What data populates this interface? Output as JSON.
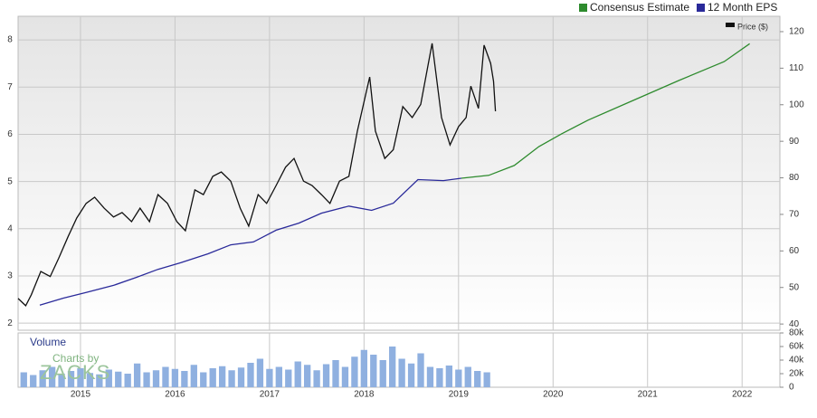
{
  "chart_data": [
    {
      "type": "line",
      "xlim": [
        2014.34,
        2022.4
      ],
      "xticks": [
        2015,
        2016,
        2017,
        2018,
        2019,
        2020,
        2021,
        2022
      ],
      "ylim": [
        1.85,
        8.5
      ],
      "yticks": [
        2,
        3,
        4,
        5,
        6,
        7,
        8
      ],
      "y2lim": [
        38.3,
        124.2
      ],
      "y2ticks": [
        40,
        50,
        60,
        70,
        80,
        90,
        100,
        110,
        120
      ],
      "grid": true,
      "annotations": [
        "Charts by",
        "ZACKS"
      ],
      "series": [
        {
          "name": "Consensus Estimate",
          "color": "#2e8b2e",
          "x": [
            2019.03,
            2019.32,
            2019.59,
            2019.85,
            2020.09,
            2020.37,
            2020.85,
            2021.33,
            2021.81,
            2022.08
          ],
          "values": [
            5.07,
            5.13,
            5.34,
            5.74,
            6.01,
            6.3,
            6.72,
            7.14,
            7.54,
            7.92
          ]
        },
        {
          "name": "12 Month EPS",
          "color": "#2a2a9a",
          "x": [
            2014.57,
            2014.82,
            2015.06,
            2015.35,
            2015.59,
            2015.82,
            2016.06,
            2016.35,
            2016.59,
            2016.83,
            2017.07,
            2017.31,
            2017.55,
            2017.84,
            2018.08,
            2018.31,
            2018.57,
            2018.84,
            2019.03
          ],
          "values": [
            2.38,
            2.53,
            2.65,
            2.8,
            2.97,
            3.14,
            3.28,
            3.47,
            3.66,
            3.72,
            3.97,
            4.12,
            4.33,
            4.48,
            4.39,
            4.54,
            5.04,
            5.02,
            5.07
          ]
        },
        {
          "name": "Price ($)",
          "color": "#111111",
          "axis": "y2",
          "x": [
            2014.34,
            2014.42,
            2014.48,
            2014.58,
            2014.68,
            2014.77,
            2014.87,
            2014.96,
            2015.06,
            2015.15,
            2015.25,
            2015.35,
            2015.44,
            2015.54,
            2015.63,
            2015.73,
            2015.82,
            2015.92,
            2016.02,
            2016.11,
            2016.21,
            2016.3,
            2016.4,
            2016.49,
            2016.59,
            2016.69,
            2016.78,
            2016.88,
            2016.97,
            2017.07,
            2017.17,
            2017.26,
            2017.36,
            2017.45,
            2017.55,
            2017.64,
            2017.74,
            2017.84,
            2017.93,
            2018.06,
            2018.12,
            2018.22,
            2018.31,
            2018.41,
            2018.51,
            2018.6,
            2018.72,
            2018.82,
            2018.91,
            2019.0,
            2019.08,
            2019.13,
            2019.21,
            2019.27,
            2019.34,
            2019.37,
            2019.39
          ],
          "values": [
            47,
            45,
            48,
            54.4,
            53,
            58,
            64,
            69,
            73,
            74.7,
            71.7,
            69.3,
            70.5,
            68,
            71.7,
            68,
            75.4,
            73,
            68,
            65.5,
            76.7,
            75.4,
            80.4,
            81.6,
            79.1,
            71.7,
            66.8,
            75.4,
            73,
            77.9,
            82.9,
            85.3,
            79.1,
            77.9,
            75.4,
            73,
            79.1,
            80.4,
            92.8,
            107.6,
            92.8,
            85.3,
            87.7,
            99.5,
            96.5,
            100.1,
            116.8,
            96.5,
            89,
            94,
            96.5,
            105.1,
            99,
            116.3,
            111.3,
            106.4,
            98.2
          ]
        }
      ]
    },
    {
      "type": "bar",
      "title": "Volume",
      "color": "#8fb0e0",
      "xlim": [
        2014.34,
        2022.4
      ],
      "ylim": [
        0,
        80000
      ],
      "yticks": [
        0,
        {
          "value": 20000,
          "label": "20k"
        },
        {
          "value": 40000,
          "label": "40k"
        },
        {
          "value": 60000,
          "label": "60k"
        },
        {
          "value": 80000,
          "label": "80k"
        }
      ],
      "x": [
        2014.4,
        2014.5,
        2014.6,
        2014.7,
        2014.8,
        2014.9,
        2015.0,
        2015.1,
        2015.2,
        2015.3,
        2015.4,
        2015.5,
        2015.6,
        2015.7,
        2015.8,
        2015.9,
        2016.0,
        2016.1,
        2016.2,
        2016.3,
        2016.4,
        2016.5,
        2016.6,
        2016.7,
        2016.8,
        2016.9,
        2017.0,
        2017.1,
        2017.2,
        2017.3,
        2017.4,
        2017.5,
        2017.6,
        2017.7,
        2017.8,
        2017.9,
        2018.0,
        2018.1,
        2018.2,
        2018.3,
        2018.4,
        2018.5,
        2018.6,
        2018.7,
        2018.8,
        2018.9,
        2019.0,
        2019.1,
        2019.2,
        2019.3
      ],
      "values": [
        22000,
        18000,
        25000,
        30000,
        20000,
        24000,
        28000,
        21000,
        19000,
        26000,
        23000,
        20000,
        35000,
        22000,
        25000,
        30000,
        27000,
        24000,
        33000,
        22000,
        28000,
        31000,
        25000,
        29000,
        36000,
        42000,
        27000,
        30000,
        26000,
        38000,
        33000,
        25000,
        34000,
        40000,
        30000,
        45000,
        55000,
        48000,
        40000,
        60000,
        42000,
        35000,
        50000,
        30000,
        28000,
        32000,
        26000,
        30000,
        24000,
        22000
      ]
    }
  ]
}
